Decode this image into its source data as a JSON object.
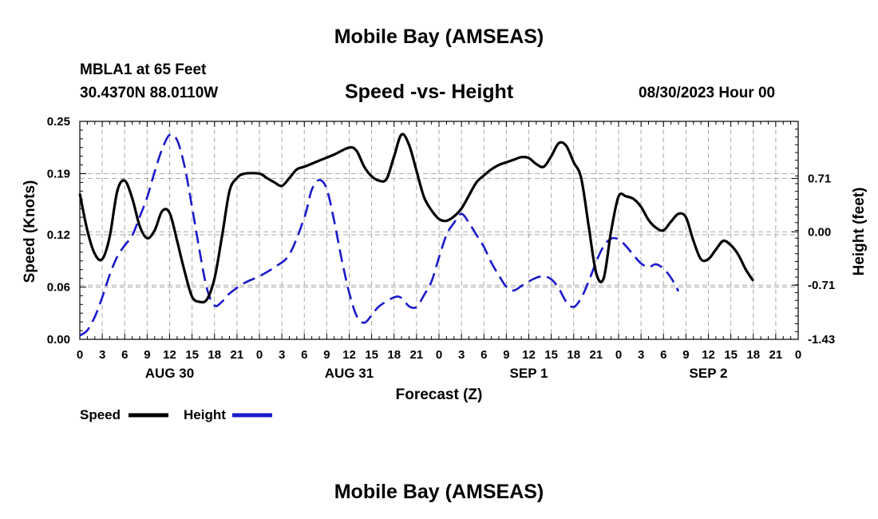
{
  "header": {
    "title": "Mobile Bay (AMSEAS)",
    "station": "MBLA1 at 65 Feet",
    "coords": "30.4370N  88.0110W",
    "subtitle": "Speed -vs- Height",
    "datetime": "08/30/2023 Hour 00"
  },
  "footer": {
    "title": "Mobile Bay (AMSEAS)"
  },
  "legend": {
    "speed_label": "Speed",
    "height_label": "Height"
  },
  "colors": {
    "speed": "#000000",
    "height": "#1a1acc",
    "grid": "#aaaaaa"
  },
  "chart_data": {
    "type": "line",
    "title": "Speed -vs- Height",
    "xlabel": "Forecast (Z)",
    "ylabel": "Speed (Knots)",
    "y2label": "Height (feet)",
    "xlim": [
      0,
      96
    ],
    "ylim": [
      0,
      0.25
    ],
    "y2lim": [
      -1.43,
      1.47
    ],
    "x_ticks": [
      0,
      3,
      6,
      9,
      12,
      15,
      18,
      21,
      24,
      27,
      30,
      33,
      36,
      39,
      42,
      45,
      48,
      51,
      54,
      57,
      60,
      63,
      66,
      69,
      72,
      75,
      78,
      81,
      84,
      87,
      90,
      93,
      96
    ],
    "x_tick_labels": [
      "0",
      "3",
      "6",
      "9",
      "12",
      "15",
      "18",
      "21",
      "0",
      "3",
      "6",
      "9",
      "12",
      "15",
      "18",
      "21",
      "0",
      "3",
      "6",
      "9",
      "12",
      "15",
      "18",
      "21",
      "0",
      "3",
      "6",
      "9",
      "12",
      "15",
      "18",
      "21",
      "0"
    ],
    "date_labels": [
      {
        "x": 12,
        "label": "AUG 30"
      },
      {
        "x": 36,
        "label": "AUG 31"
      },
      {
        "x": 60,
        "label": "SEP 1"
      },
      {
        "x": 84,
        "label": "SEP 2"
      }
    ],
    "y_ticks": [
      0.0,
      0.06,
      0.12,
      0.19,
      0.25
    ],
    "y_tick_labels": [
      "0.00",
      "0.06",
      "0.12",
      "0.19",
      "0.25"
    ],
    "y2_ticks": [
      -1.43,
      -0.71,
      0.0,
      0.71
    ],
    "y2_tick_labels": [
      "-1.43",
      "-0.71",
      "0.00",
      "0.71"
    ],
    "grid": true,
    "series": [
      {
        "name": "Speed",
        "axis": "left",
        "style": "solid",
        "points": [
          [
            0,
            0.167
          ],
          [
            1,
            0.125
          ],
          [
            2,
            0.098
          ],
          [
            3,
            0.092
          ],
          [
            4,
            0.118
          ],
          [
            5,
            0.17
          ],
          [
            6,
            0.182
          ],
          [
            7,
            0.162
          ],
          [
            8,
            0.13
          ],
          [
            9,
            0.116
          ],
          [
            10,
            0.125
          ],
          [
            11,
            0.147
          ],
          [
            12,
            0.145
          ],
          [
            13,
            0.113
          ],
          [
            14,
            0.078
          ],
          [
            15,
            0.049
          ],
          [
            16,
            0.043
          ],
          [
            17,
            0.046
          ],
          [
            18,
            0.07
          ],
          [
            19,
            0.118
          ],
          [
            20,
            0.17
          ],
          [
            21,
            0.185
          ],
          [
            22,
            0.19
          ],
          [
            24,
            0.19
          ],
          [
            25,
            0.185
          ],
          [
            26,
            0.18
          ],
          [
            27,
            0.176
          ],
          [
            28,
            0.185
          ],
          [
            29,
            0.195
          ],
          [
            30,
            0.198
          ],
          [
            32,
            0.205
          ],
          [
            34,
            0.212
          ],
          [
            36,
            0.22
          ],
          [
            37,
            0.216
          ],
          [
            38,
            0.198
          ],
          [
            39,
            0.187
          ],
          [
            40,
            0.182
          ],
          [
            41,
            0.184
          ],
          [
            42,
            0.21
          ],
          [
            43,
            0.235
          ],
          [
            44,
            0.223
          ],
          [
            45,
            0.193
          ],
          [
            46,
            0.163
          ],
          [
            47,
            0.148
          ],
          [
            48,
            0.138
          ],
          [
            49,
            0.136
          ],
          [
            50,
            0.141
          ],
          [
            51,
            0.15
          ],
          [
            52,
            0.165
          ],
          [
            53,
            0.18
          ],
          [
            54,
            0.188
          ],
          [
            55,
            0.195
          ],
          [
            56,
            0.2
          ],
          [
            57,
            0.203
          ],
          [
            58,
            0.206
          ],
          [
            59,
            0.209
          ],
          [
            60,
            0.208
          ],
          [
            61,
            0.201
          ],
          [
            62,
            0.198
          ],
          [
            63,
            0.21
          ],
          [
            64,
            0.225
          ],
          [
            65,
            0.222
          ],
          [
            66,
            0.203
          ],
          [
            67,
            0.185
          ],
          [
            68,
            0.13
          ],
          [
            69,
            0.076
          ],
          [
            70,
            0.07
          ],
          [
            71,
            0.124
          ],
          [
            72,
            0.164
          ],
          [
            73,
            0.164
          ],
          [
            74,
            0.161
          ],
          [
            75,
            0.152
          ],
          [
            76,
            0.137
          ],
          [
            77,
            0.128
          ],
          [
            78,
            0.125
          ],
          [
            79,
            0.135
          ],
          [
            80,
            0.144
          ],
          [
            81,
            0.14
          ],
          [
            82,
            0.113
          ],
          [
            83,
            0.092
          ],
          [
            84,
            0.092
          ],
          [
            85,
            0.103
          ],
          [
            86,
            0.113
          ],
          [
            87,
            0.108
          ],
          [
            88,
            0.097
          ],
          [
            89,
            0.08
          ],
          [
            90,
            0.067
          ]
        ]
      },
      {
        "name": "Height",
        "axis": "right",
        "style": "dashed",
        "points": [
          [
            0,
            -1.38
          ],
          [
            1,
            -1.31
          ],
          [
            2,
            -1.13
          ],
          [
            3,
            -0.87
          ],
          [
            4,
            -0.57
          ],
          [
            5,
            -0.33
          ],
          [
            6,
            -0.18
          ],
          [
            7,
            -0.05
          ],
          [
            8,
            0.2
          ],
          [
            9,
            0.46
          ],
          [
            10,
            0.8
          ],
          [
            11,
            1.1
          ],
          [
            12,
            1.29
          ],
          [
            13,
            1.22
          ],
          [
            14,
            0.87
          ],
          [
            15,
            0.33
          ],
          [
            16,
            -0.25
          ],
          [
            17,
            -0.76
          ],
          [
            18,
            -0.98
          ],
          [
            19,
            -0.93
          ],
          [
            20,
            -0.82
          ],
          [
            22,
            -0.68
          ],
          [
            24,
            -0.59
          ],
          [
            26,
            -0.47
          ],
          [
            28,
            -0.3
          ],
          [
            30,
            0.19
          ],
          [
            31,
            0.56
          ],
          [
            32,
            0.69
          ],
          [
            33,
            0.57
          ],
          [
            34,
            0.14
          ],
          [
            35,
            -0.37
          ],
          [
            36,
            -0.81
          ],
          [
            37,
            -1.12
          ],
          [
            38,
            -1.21
          ],
          [
            39,
            -1.11
          ],
          [
            40,
            -0.99
          ],
          [
            42,
            -0.87
          ],
          [
            43,
            -0.88
          ],
          [
            44,
            -0.99
          ],
          [
            45,
            -1.0
          ],
          [
            46,
            -0.84
          ],
          [
            47,
            -0.66
          ],
          [
            48,
            -0.34
          ],
          [
            49,
            -0.04
          ],
          [
            50,
            0.12
          ],
          [
            51,
            0.24
          ],
          [
            52,
            0.12
          ],
          [
            53,
            -0.04
          ],
          [
            54,
            -0.2
          ],
          [
            55,
            -0.41
          ],
          [
            56,
            -0.58
          ],
          [
            57,
            -0.73
          ],
          [
            58,
            -0.78
          ],
          [
            59,
            -0.72
          ],
          [
            60,
            -0.66
          ],
          [
            61,
            -0.61
          ],
          [
            62,
            -0.59
          ],
          [
            63,
            -0.63
          ],
          [
            64,
            -0.75
          ],
          [
            65,
            -0.93
          ],
          [
            66,
            -1.0
          ],
          [
            67,
            -0.88
          ],
          [
            68,
            -0.66
          ],
          [
            69,
            -0.4
          ],
          [
            70,
            -0.19
          ],
          [
            71,
            -0.09
          ],
          [
            72,
            -0.1
          ],
          [
            73,
            -0.19
          ],
          [
            74,
            -0.31
          ],
          [
            75,
            -0.42
          ],
          [
            76,
            -0.47
          ],
          [
            77,
            -0.43
          ],
          [
            78,
            -0.49
          ],
          [
            79,
            -0.61
          ],
          [
            80,
            -0.79
          ]
        ]
      }
    ]
  }
}
